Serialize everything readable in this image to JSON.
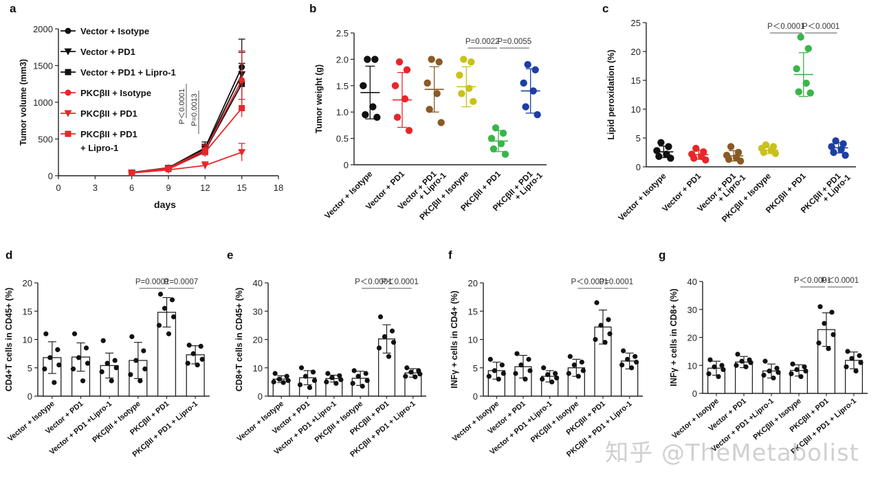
{
  "watermark": "知乎 @TheMetabolist",
  "colors": {
    "black": "#111111",
    "red": "#e8262a",
    "brown": "#8a5a25",
    "olive": "#c9c21a",
    "green": "#3ab54a",
    "blue": "#1c3fa3"
  },
  "chart_data": [
    {
      "panel": "a",
      "type": "line",
      "xlabel": "days",
      "ylabel": "Tumor volume (mm3)",
      "xlim": [
        0,
        18
      ],
      "ylim": [
        0,
        2000
      ],
      "xticks": [
        "0",
        "3",
        "6",
        "9",
        "12",
        "15",
        "18"
      ],
      "yticks": [
        "0",
        "500",
        "1000",
        "1500",
        "2000"
      ],
      "x": [
        6,
        9,
        12,
        15
      ],
      "series": [
        {
          "name": "Vector + Isotype",
          "color": "#111111",
          "marker": "circle",
          "values": [
            45,
            110,
            380,
            1480
          ],
          "errors": [
            10,
            30,
            80,
            380
          ]
        },
        {
          "name": "Vector + PD1",
          "color": "#111111",
          "marker": "triangle-down",
          "values": [
            42,
            100,
            360,
            1380
          ],
          "errors": [
            10,
            25,
            70,
            300
          ]
        },
        {
          "name": "Vector + PD1 + Lipro-1",
          "color": "#111111",
          "marker": "square",
          "values": [
            40,
            95,
            340,
            1250
          ],
          "errors": [
            10,
            25,
            70,
            280
          ]
        },
        {
          "name": "PKCβII + Isotype",
          "color": "#e8262a",
          "marker": "circle",
          "values": [
            42,
            105,
            350,
            1300
          ],
          "errors": [
            10,
            25,
            70,
            400
          ]
        },
        {
          "name": "PKCβII + PD1",
          "color": "#e8262a",
          "marker": "triangle-down",
          "values": [
            38,
            80,
            140,
            320
          ],
          "errors": [
            10,
            20,
            50,
            120
          ]
        },
        {
          "name": "PKCβII + PD1 + Lipro-1",
          "color": "#e8262a",
          "marker": "square",
          "legend_lines": [
            "PKCβII + PD1",
            "+ Lipro-1"
          ],
          "values": [
            40,
            90,
            320,
            920
          ],
          "errors": [
            10,
            20,
            60,
            120
          ]
        }
      ],
      "annotations": [
        "P＜0.0001",
        "P=0.0013"
      ]
    },
    {
      "panel": "b",
      "type": "scatter",
      "ylabel": "Tumor weight (g)",
      "ylim": [
        0,
        2.5
      ],
      "yticks": [
        "0",
        "0.5",
        "1.0",
        "1.5",
        "2.0",
        "2.5"
      ],
      "categories": [
        "Vector + Isotype",
        "Vector + PD1",
        "Vector + PD1 + Lipro-1",
        "PKCβII + Isotype",
        "PKCβII + PD1",
        "PKCβII + PD1 + Lipro-1"
      ],
      "category_labels": [
        [
          "Vector + Isotype"
        ],
        [
          "Vector + PD1"
        ],
        [
          "Vector + PD1",
          "+ Lipro-1"
        ],
        [
          "PKCβII + Isotype"
        ],
        [
          "PKCβII + PD1"
        ],
        [
          "PKCβII + PD1",
          "+ Lipro-1"
        ]
      ],
      "colors": [
        "#111111",
        "#e8262a",
        "#8a5a25",
        "#c9c21a",
        "#3ab54a",
        "#1c3fa3"
      ],
      "points": [
        [
          2.0,
          2.0,
          1.5,
          1.1,
          0.95,
          0.9
        ],
        [
          1.95,
          1.8,
          1.5,
          1.25,
          0.9,
          0.65
        ],
        [
          2.0,
          1.95,
          1.55,
          1.35,
          1.05,
          0.8
        ],
        [
          2.0,
          1.95,
          1.7,
          1.45,
          1.35,
          1.2
        ],
        [
          0.7,
          0.6,
          0.5,
          0.4,
          0.3,
          0.2
        ],
        [
          1.9,
          1.8,
          1.55,
          1.4,
          1.1,
          0.95
        ]
      ],
      "means": [
        1.37,
        1.23,
        1.43,
        1.48,
        0.45,
        1.4
      ],
      "errors": [
        0.5,
        0.52,
        0.43,
        0.38,
        0.2,
        0.42
      ],
      "annotations": [
        {
          "text": "P=0.0022",
          "from": 3,
          "to": 4
        },
        {
          "text": "P=0.0055",
          "from": 4,
          "to": 5
        }
      ]
    },
    {
      "panel": "c",
      "type": "scatter",
      "ylabel": "Lipid peroxidation (%)",
      "ylim": [
        0,
        25
      ],
      "yticks": [
        "0",
        "5",
        "10",
        "15",
        "20",
        "25"
      ],
      "categories": [
        "Vector + Isotype",
        "Vector + PD1",
        "Vector + PD1 + Lipro-1",
        "PKCβII + Isotype",
        "PKCβII + PD1",
        "PKCβII + PD1 + Lipro-1"
      ],
      "category_labels": [
        [
          "Vector + Isotype"
        ],
        [
          "Vector + PD1"
        ],
        [
          "Vector + PD1",
          "+ Lipro-1"
        ],
        [
          "PKCβII + Isotype"
        ],
        [
          "PKCβII + PD1"
        ],
        [
          "PKCβII + PD1",
          "+ Lipro-1"
        ]
      ],
      "colors": [
        "#111111",
        "#e8262a",
        "#8a5a25",
        "#c9c21a",
        "#3ab54a",
        "#1c3fa3"
      ],
      "points": [
        [
          4.2,
          3.5,
          2.8,
          2.2,
          1.8,
          1.5
        ],
        [
          3.2,
          2.6,
          2.2,
          1.8,
          1.5,
          1.2
        ],
        [
          3.5,
          2.5,
          2.0,
          1.6,
          1.3,
          1.0
        ],
        [
          3.8,
          3.5,
          3.2,
          2.8,
          2.5,
          2.3
        ],
        [
          22.5,
          20.5,
          17.0,
          14.5,
          13.0,
          12.8
        ],
        [
          4.5,
          4.0,
          3.5,
          3.0,
          2.5,
          2.0
        ]
      ],
      "means": [
        2.6,
        2.1,
        1.9,
        2.9,
        16.0,
        3.3
      ],
      "errors": [
        1.0,
        0.8,
        0.9,
        0.6,
        3.8,
        0.9
      ],
      "annotations": [
        {
          "text": "P＜0.0001",
          "from": 3,
          "to": 4
        },
        {
          "text": "P＜0.0001",
          "from": 4,
          "to": 5
        }
      ]
    },
    {
      "panel": "d",
      "type": "bar",
      "ylabel": "CD4+T cells in CD45+ (%)",
      "ylim": [
        0,
        20
      ],
      "yticks": [
        "0",
        "5",
        "10",
        "15",
        "20"
      ],
      "categories": [
        "Vector + Isotype",
        "Vector + PD1",
        "Vector + PD1 +Lipro-1",
        "PKCβII + Isotype",
        "PKCβII + PD1",
        "PKCβII + PD1 + Lipro-1"
      ],
      "values": [
        6.8,
        6.9,
        5.4,
        6.3,
        14.8,
        7.3
      ],
      "errors": [
        2.8,
        2.5,
        2.2,
        3.2,
        2.6,
        1.6
      ],
      "points": [
        [
          11.0,
          8.2,
          6.8,
          5.5,
          4.8,
          2.4
        ],
        [
          11.0,
          8.5,
          6.8,
          5.8,
          4.8,
          2.7
        ],
        [
          9.8,
          6.3,
          5.8,
          5.0,
          4.3,
          2.7
        ],
        [
          10.5,
          8.0,
          6.3,
          4.8,
          3.8,
          2.7
        ],
        [
          18.0,
          17.0,
          15.5,
          14.0,
          12.5,
          11.0
        ],
        [
          9.0,
          8.8,
          7.5,
          6.5,
          5.8,
          5.5
        ]
      ],
      "annotations": [
        {
          "text": "P=0.0001",
          "from": 3,
          "to": 4
        },
        {
          "text": "P=0.0007",
          "from": 4,
          "to": 5
        }
      ]
    },
    {
      "panel": "e",
      "type": "bar",
      "ylabel": "CD8+T cells in CD45+ (%)",
      "ylim": [
        0,
        40
      ],
      "yticks": [
        "0",
        "10",
        "20",
        "30",
        "40"
      ],
      "categories": [
        "Vector + Isotype",
        "Vector + PD1",
        "Vector + PD1 +Lipro-1",
        "PKCβII + Isotype",
        "PKCβII + PD1",
        "PKCβII + PD1 + Lipro-1"
      ],
      "values": [
        6.0,
        6.5,
        6.2,
        6.3,
        20.2,
        8.2
      ],
      "errors": [
        1.2,
        2.5,
        1.2,
        2.5,
        5.0,
        1.5
      ],
      "points": [
        [
          8.0,
          7.0,
          6.0,
          5.5,
          5.0,
          4.8
        ],
        [
          10.0,
          8.5,
          7.0,
          5.5,
          4.0,
          3.0
        ],
        [
          8.0,
          7.2,
          6.5,
          5.8,
          5.0,
          4.5
        ],
        [
          9.0,
          8.0,
          7.0,
          5.5,
          4.5,
          3.5
        ],
        [
          28.0,
          23.0,
          21.0,
          19.0,
          17.0,
          14.0
        ],
        [
          10.0,
          9.0,
          8.5,
          7.8,
          7.0,
          6.8
        ]
      ],
      "annotations": [
        {
          "text": "P＜0.0001",
          "from": 3,
          "to": 4
        },
        {
          "text": "P＜0.0001",
          "from": 4,
          "to": 5
        }
      ]
    },
    {
      "panel": "f",
      "type": "bar",
      "ylabel": "INFγ + cells in CD4+ (%)",
      "ylim": [
        0,
        20
      ],
      "yticks": [
        "0",
        "5",
        "10",
        "15",
        "20"
      ],
      "categories": [
        "Vector + Isotype",
        "Vector + PD1",
        "Vector + PD1 +Lipro-1",
        "PKCβII + Isotype",
        "PKCβII + PD1",
        "PKCβII + PD1 + Lipro-1"
      ],
      "values": [
        4.5,
        5.2,
        3.5,
        5.0,
        12.2,
        6.2
      ],
      "errors": [
        1.5,
        2.0,
        1.0,
        1.5,
        3.0,
        1.4
      ],
      "points": [
        [
          6.5,
          5.5,
          4.5,
          4.0,
          3.5,
          3.0
        ],
        [
          7.5,
          6.5,
          5.5,
          4.5,
          4.0,
          3.0
        ],
        [
          5.0,
          4.0,
          3.8,
          3.2,
          3.0,
          2.5
        ],
        [
          7.0,
          6.0,
          5.5,
          4.5,
          4.0,
          3.5
        ],
        [
          16.5,
          13.5,
          12.5,
          11.0,
          10.0,
          9.5
        ],
        [
          8.0,
          7.0,
          6.5,
          6.0,
          5.5,
          5.0
        ]
      ],
      "annotations": [
        {
          "text": "P＜0.0001",
          "from": 3,
          "to": 4
        },
        {
          "text": "P=0.0001",
          "from": 4,
          "to": 5
        }
      ]
    },
    {
      "panel": "g",
      "type": "bar",
      "ylabel": "INFγ + cells in CD8+ (%)",
      "ylim": [
        0,
        40
      ],
      "yticks": [
        "0",
        "10",
        "20",
        "30",
        "40"
      ],
      "categories": [
        "Vector + Isotype",
        "Vector + PD1",
        "Vector + PD1 +Lipro-1",
        "PKCβII + Isotype",
        "PKCβII + PD1",
        "PKCβII + PD1 + Lipro-1"
      ],
      "values": [
        9.0,
        11.2,
        8.0,
        8.2,
        22.8,
        11.8
      ],
      "errors": [
        2.5,
        2.0,
        2.5,
        2.0,
        6.0,
        3.0
      ],
      "points": [
        [
          12.0,
          10.0,
          9.5,
          8.5,
          7.0,
          6.0
        ],
        [
          14.0,
          12.0,
          11.5,
          11.0,
          10.0,
          9.5
        ],
        [
          11.5,
          9.0,
          8.0,
          7.5,
          6.5,
          5.5
        ],
        [
          10.5,
          9.5,
          8.5,
          8.0,
          7.0,
          6.0
        ],
        [
          31.0,
          29.0,
          25.0,
          21.0,
          18.0,
          16.0
        ],
        [
          15.0,
          13.5,
          12.5,
          11.0,
          9.5,
          8.0
        ]
      ],
      "annotations": [
        {
          "text": "P＜0.0001",
          "from": 3,
          "to": 4
        },
        {
          "text": "P＜0.0001",
          "from": 4,
          "to": 5
        }
      ]
    }
  ]
}
